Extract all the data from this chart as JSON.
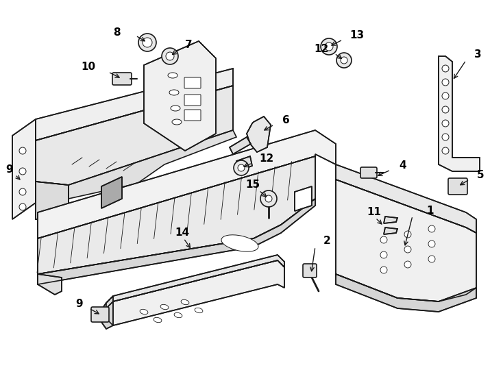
{
  "background_color": "#ffffff",
  "line_color": "#1a1a1a",
  "lw": 1.2,
  "lw_thin": 0.7,
  "labels": {
    "1": [
      0.635,
      0.415,
      0.6,
      0.405
    ],
    "2": [
      0.48,
      0.148,
      0.452,
      0.168
    ],
    "3": [
      0.92,
      0.758,
      0.9,
      0.73
    ],
    "4": [
      0.73,
      0.548,
      0.672,
      0.528
    ],
    "5": [
      0.893,
      0.482,
      0.862,
      0.472
    ],
    "6": [
      0.53,
      0.665,
      0.49,
      0.655
    ],
    "7": [
      0.348,
      0.842,
      0.33,
      0.818
    ],
    "8": [
      0.232,
      0.888,
      0.265,
      0.882
    ],
    "9a": [
      0.028,
      0.518,
      0.055,
      0.518
    ],
    "9b": [
      0.175,
      0.148,
      0.2,
      0.155
    ],
    "10": [
      0.165,
      0.762,
      0.215,
      0.758
    ],
    "11": [
      0.685,
      0.435,
      0.66,
      0.432
    ],
    "12a": [
      0.468,
      0.625,
      0.468,
      0.618
    ],
    "12b": [
      0.49,
      0.598,
      0.482,
      0.588
    ],
    "13": [
      0.638,
      0.778,
      0.598,
      0.775
    ],
    "14": [
      0.33,
      0.438,
      0.352,
      0.455
    ],
    "15": [
      0.408,
      0.548,
      0.43,
      0.54
    ]
  },
  "font_size": 11
}
